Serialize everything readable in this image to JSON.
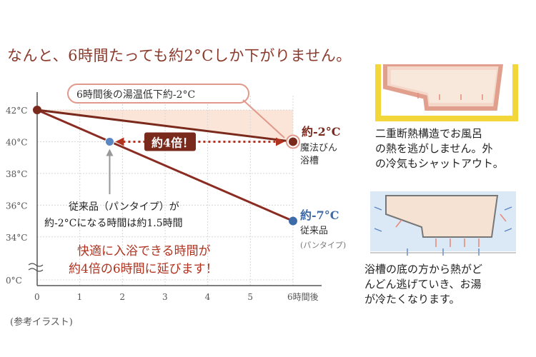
{
  "headline": "なんと、6時間たっても約2°Cしか下がりません。",
  "chart_data": {
    "type": "line",
    "x": [
      0,
      1,
      2,
      3,
      4,
      5,
      6
    ],
    "x_tick_labels": [
      "0",
      "1",
      "2",
      "3",
      "4",
      "5",
      "6時間後"
    ],
    "y_tick_labels": [
      "0°C",
      "34°C",
      "36°C",
      "38°C",
      "40°C",
      "42°C"
    ],
    "y_tick_values": [
      0,
      34,
      36,
      38,
      40,
      42
    ],
    "ylim": [
      33,
      42
    ],
    "y_axis_break": true,
    "series": [
      {
        "name": "魔法びん浴槽",
        "x": [
          0,
          6
        ],
        "values": [
          42,
          40
        ],
        "end_label": "約-2°C",
        "label_lines": [
          "魔法びん",
          "浴槽"
        ],
        "color": "#7a2a1c"
      },
      {
        "name": "従来品",
        "x": [
          0,
          6
        ],
        "values": [
          42,
          35
        ],
        "end_label": "約-7°C",
        "label_lines": [
          "従来品",
          "(パンタイプ)"
        ],
        "color": "#8a2c22",
        "end_color": "#3d6aa8"
      }
    ],
    "marker": {
      "x": 1.7,
      "y": 40
    },
    "annotations": {
      "top_callout": "6時間後の湯温低下約-2°C",
      "ratio_badge": "約4倍！",
      "conventional_note_line1": "従来品（パンタイプ）が",
      "conventional_note_line2": "約-2°Cになる時間は約1.5時間",
      "highlight_line1": "快適に入浴できる時間が",
      "highlight_line2": "約4倍の6時間に延びます！"
    }
  },
  "reference_note": "(参考イラスト)",
  "right_panel": {
    "description_1": "二重断熱構造でお風呂\nの熱を逃がしません。外\nの冷気もシャットアウト。",
    "description_2": "浴槽の底の方から熱がど\nんどん逃げていき、お湯\nが冷たくなります。"
  },
  "colors": {
    "headline": "#8b3a2c",
    "line_dark": "#7a2a1c",
    "highlight_text": "#b0321f",
    "callout_border": "#e0998a",
    "blue_accent": "#3d6aa8",
    "band_fill": "#fae5d8",
    "insulation_yellow": "#f2d63a",
    "heat_arrow": "#e98a7a",
    "cold_arrow": "#5b86c2"
  }
}
